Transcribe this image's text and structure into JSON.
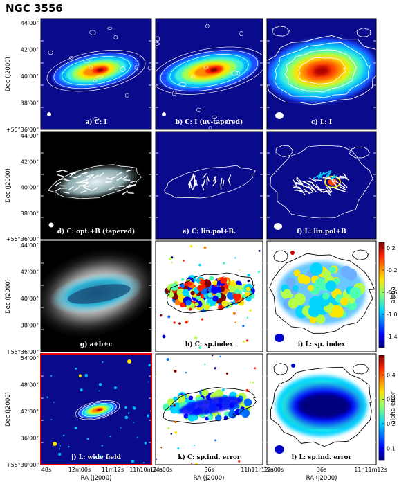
{
  "chart_data": {
    "type": "heatmap",
    "title": "NGC 3556",
    "layout": "4x3 panel grid",
    "ylabel": "Dec (J2000)",
    "xlabel": "RA (J2000)",
    "rows": [
      {
        "yticks": [
          "44'00\"",
          "42'00\"",
          "40'00\"",
          "38'00\"",
          "+55°36'00\""
        ]
      },
      {
        "yticks": [
          "44'00\"",
          "42'00\"",
          "40'00\"",
          "38'00\"",
          "+55°36'00\""
        ]
      },
      {
        "yticks": [
          "44'00\"",
          "42'00\"",
          "40'00\"",
          "38'00\"",
          "+55°36'00\""
        ]
      },
      {
        "yticks": [
          "54'00\"",
          "48'00\"",
          "42'00\"",
          "36'00\"",
          "+55°30'00\""
        ]
      }
    ],
    "xticks": [
      [
        "48s",
        "12m00s",
        "11m12s",
        "11h10m24s"
      ],
      [
        "12m00s",
        "36s",
        "11h11m12s"
      ],
      [
        "12m00s",
        "36s",
        "11h11m12s"
      ]
    ],
    "panels": [
      {
        "label": "a) C: I",
        "kind": "intensity",
        "size": 1.0
      },
      {
        "label": "b) C: I (uv-tapered)",
        "kind": "intensity",
        "size": 1.15
      },
      {
        "label": "c) L: I",
        "kind": "intensity_big",
        "size": 1.6
      },
      {
        "label": "d) C: opt.+B (tapered)",
        "kind": "optical_vectors",
        "size": 1.0
      },
      {
        "label": "e) C: lin.pol+B.",
        "kind": "pol_vectors",
        "size": 1.0
      },
      {
        "label": "f) L: lin.pol+B",
        "kind": "pol_vectors_big",
        "size": 1.4
      },
      {
        "label": "g) a+b+c",
        "kind": "composite",
        "size": 1.3
      },
      {
        "label": "h) C: sp.index",
        "kind": "spindex",
        "size": 1.0
      },
      {
        "label": "i) L: sp. index",
        "kind": "spindex_big",
        "size": 1.5
      },
      {
        "label": "j) L: wide field",
        "kind": "widefield",
        "size": 0.45
      },
      {
        "label": "k) C: sp.ind. error",
        "kind": "error",
        "size": 1.0
      },
      {
        "label": "l) L: sp.ind. error",
        "kind": "error_big",
        "size": 1.5
      }
    ],
    "colorbars": [
      {
        "row": 2,
        "label": "alpha",
        "ticks": [
          "0.2",
          "-0.2",
          "-0.6",
          "-1.0",
          "-1.4"
        ],
        "range": [
          -1.6,
          0.3
        ]
      },
      {
        "row": 3,
        "label": "alpha error",
        "ticks": [
          "0.4",
          "0.3",
          "0.2",
          "0.1"
        ],
        "range": [
          0.05,
          0.48
        ]
      }
    ],
    "colors": {
      "background": "#0a0a8c",
      "highlight_frame": "#e8000b"
    }
  }
}
